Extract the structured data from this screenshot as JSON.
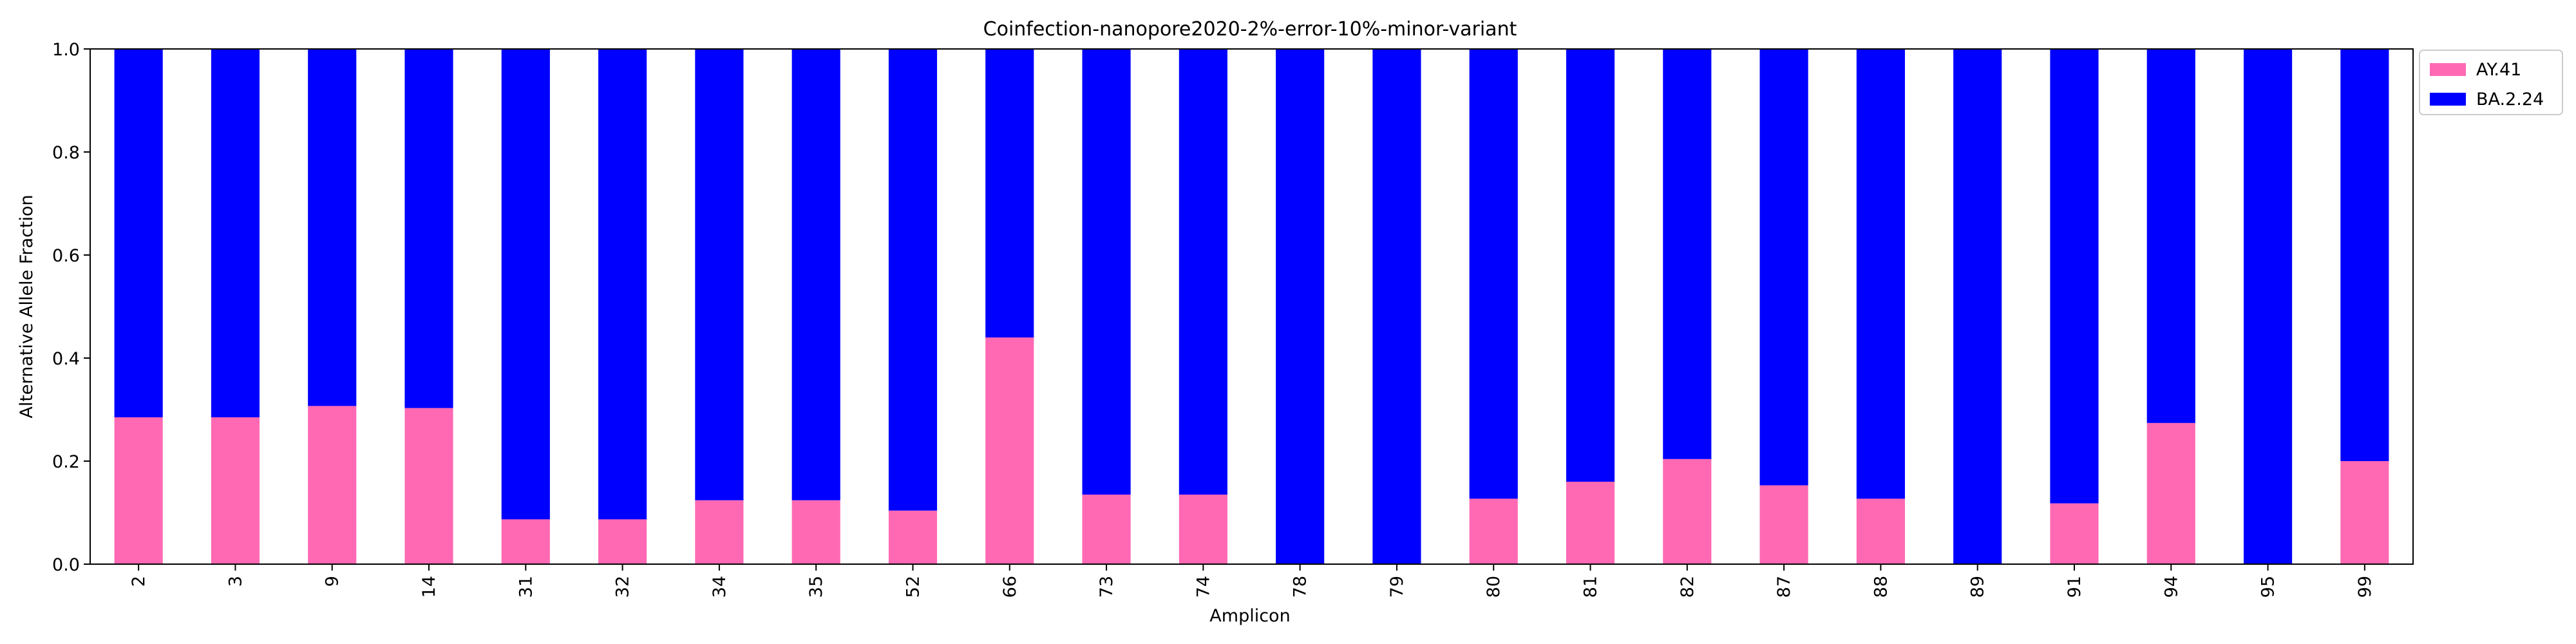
{
  "chart_data": {
    "type": "bar",
    "stacked": true,
    "title": "Coinfection-nanopore2020-2%-error-10%-minor-variant",
    "xlabel": "Amplicon",
    "ylabel": "Alternative Allele Fraction",
    "ylim": [
      0,
      1.0
    ],
    "yticks": [
      "0.0",
      "0.2",
      "0.4",
      "0.6",
      "0.8",
      "1.0"
    ],
    "grid": false,
    "legend_position": "outside-top-right",
    "categories": [
      "2",
      "3",
      "9",
      "14",
      "31",
      "32",
      "34",
      "35",
      "52",
      "66",
      "73",
      "74",
      "78",
      "79",
      "80",
      "81",
      "82",
      "87",
      "88",
      "89",
      "91",
      "94",
      "95",
      "99"
    ],
    "series": [
      {
        "name": "AY.41",
        "color": "#ff69b4",
        "values": [
          0.285,
          0.285,
          0.307,
          0.303,
          0.087,
          0.087,
          0.124,
          0.124,
          0.104,
          0.44,
          0.135,
          0.135,
          0.0,
          0.0,
          0.127,
          0.16,
          0.204,
          0.153,
          0.127,
          0.0,
          0.118,
          0.274,
          0.0,
          0.2
        ]
      },
      {
        "name": "BA.2.24",
        "color": "#0000ff",
        "values": [
          0.715,
          0.715,
          0.693,
          0.697,
          0.913,
          0.913,
          0.876,
          0.876,
          0.896,
          0.56,
          0.865,
          0.865,
          1.0,
          1.0,
          0.873,
          0.84,
          0.796,
          0.847,
          0.873,
          1.0,
          0.882,
          0.726,
          1.0,
          0.8
        ]
      }
    ]
  }
}
